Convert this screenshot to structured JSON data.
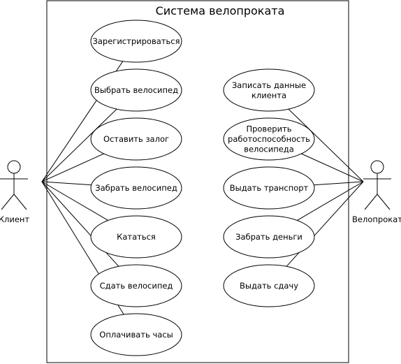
{
  "system": {
    "title": "Система  велопроката"
  },
  "actors": {
    "client": {
      "label": "Клиент"
    },
    "rental": {
      "label": "Велопрокат"
    }
  },
  "use_cases": {
    "register": [
      "Зарегистрироваться"
    ],
    "choose_bike": [
      "Выбрать велосипед"
    ],
    "leave_deposit": [
      "Оставить залог"
    ],
    "take_bike": [
      "Забрать велосипед"
    ],
    "ride": [
      "Кататься"
    ],
    "return_bike": [
      "Сдать велосипед"
    ],
    "pay_hours": [
      "Оплачивать часы"
    ],
    "record_client": [
      "Записать данные",
      "клиента"
    ],
    "check_bike": [
      "Проверить",
      "работоспособность",
      "велосипеда"
    ],
    "issue_transport": [
      "Выдать транспорт"
    ],
    "take_money": [
      "Забрать деньги"
    ],
    "give_change": [
      "Выдать сдачу"
    ]
  }
}
